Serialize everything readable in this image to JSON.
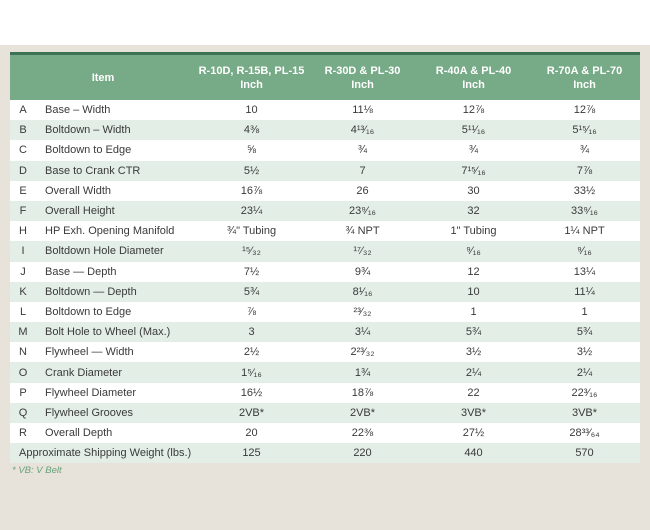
{
  "colors": {
    "background_beige": "#e7e3da",
    "header_green": "#77aa86",
    "header_top_border_green": "#3e7254",
    "row_alt_green": "#e3eee6",
    "footnote_green": "#69a07a",
    "text": "#3a3a3a",
    "header_text": "#ffffff"
  },
  "table": {
    "header": {
      "item_label": "Item",
      "columns": [
        {
          "model": "R-10D, R-15B, PL-15",
          "unit": "Inch"
        },
        {
          "model": "R-30D & PL-30",
          "unit": "Inch"
        },
        {
          "model": "R-40A & PL-40",
          "unit": "Inch"
        },
        {
          "model": "R-70A & PL-70",
          "unit": "Inch"
        }
      ]
    },
    "rows": [
      {
        "letter": "A",
        "item": "Base – Width",
        "values": [
          "10",
          "11⅛",
          "12⅞",
          "12⅞"
        ]
      },
      {
        "letter": "B",
        "item": "Boltdown – Width",
        "values": [
          "4⅜",
          "4¹³⁄₁₆",
          "5¹¹⁄₁₆",
          "5¹⁵⁄₁₆"
        ]
      },
      {
        "letter": "C",
        "item": "Boltdown to Edge",
        "values": [
          "⅝",
          "¾",
          "¾",
          "¾"
        ]
      },
      {
        "letter": "D",
        "item": "Base to Crank CTR",
        "values": [
          "5½",
          "7",
          "7¹⁵⁄₁₆",
          "7⅞"
        ]
      },
      {
        "letter": "E",
        "item": "Overall Width",
        "values": [
          "16⅞",
          "26",
          "30",
          "33½"
        ]
      },
      {
        "letter": "F",
        "item": "Overall Height",
        "values": [
          "23¼",
          "23⁹⁄₁₆",
          "32",
          "33⁹⁄₁₆"
        ]
      },
      {
        "letter": "H",
        "item": "HP Exh. Opening Manifold",
        "values": [
          "¾\" Tubing",
          "¾ NPT",
          "1\" Tubing",
          "1¼ NPT"
        ]
      },
      {
        "letter": "I",
        "item": "Boltdown Hole Diameter",
        "values": [
          "¹⁵⁄₃₂",
          "¹⁷⁄₃₂",
          "⁹⁄₁₆",
          "⁹⁄₁₆"
        ]
      },
      {
        "letter": "J",
        "item": "Base — Depth",
        "values": [
          "7½",
          "9¾",
          "12",
          "13¼"
        ]
      },
      {
        "letter": "K",
        "item": "Boltdown — Depth",
        "values": [
          "5¾",
          "8¹⁄₁₆",
          "10",
          "11¼"
        ]
      },
      {
        "letter": "L",
        "item": "Boltdown to Edge",
        "values": [
          "⅞",
          "²³⁄₃₂",
          "1",
          "1"
        ]
      },
      {
        "letter": "M",
        "item": "Bolt Hole to Wheel (Max.)",
        "values": [
          "3",
          "3¼",
          "5¾",
          "5¾"
        ]
      },
      {
        "letter": "N",
        "item": "Flywheel — Width",
        "values": [
          "2½",
          "2²³⁄₃₂",
          "3½",
          "3½"
        ]
      },
      {
        "letter": "O",
        "item": "Crank Diameter",
        "values": [
          "1⁵⁄₁₆",
          "1¾",
          "2¼",
          "2¼"
        ]
      },
      {
        "letter": "P",
        "item": "Flywheel Diameter",
        "values": [
          "16½",
          "18⅞",
          "22",
          "22³⁄₁₆"
        ]
      },
      {
        "letter": "Q",
        "item": "Flywheel Grooves",
        "values": [
          "2VB*",
          "2VB*",
          "3VB*",
          "3VB*"
        ]
      },
      {
        "letter": "R",
        "item": "Overall Depth",
        "values": [
          "20",
          "22⅜",
          "27½",
          "28³³⁄₆₄"
        ]
      },
      {
        "letter": "",
        "item": "Approximate Shipping Weight (lbs.)",
        "values": [
          "125",
          "220",
          "440",
          "570"
        ]
      }
    ]
  },
  "footnote": "* VB: V Belt"
}
